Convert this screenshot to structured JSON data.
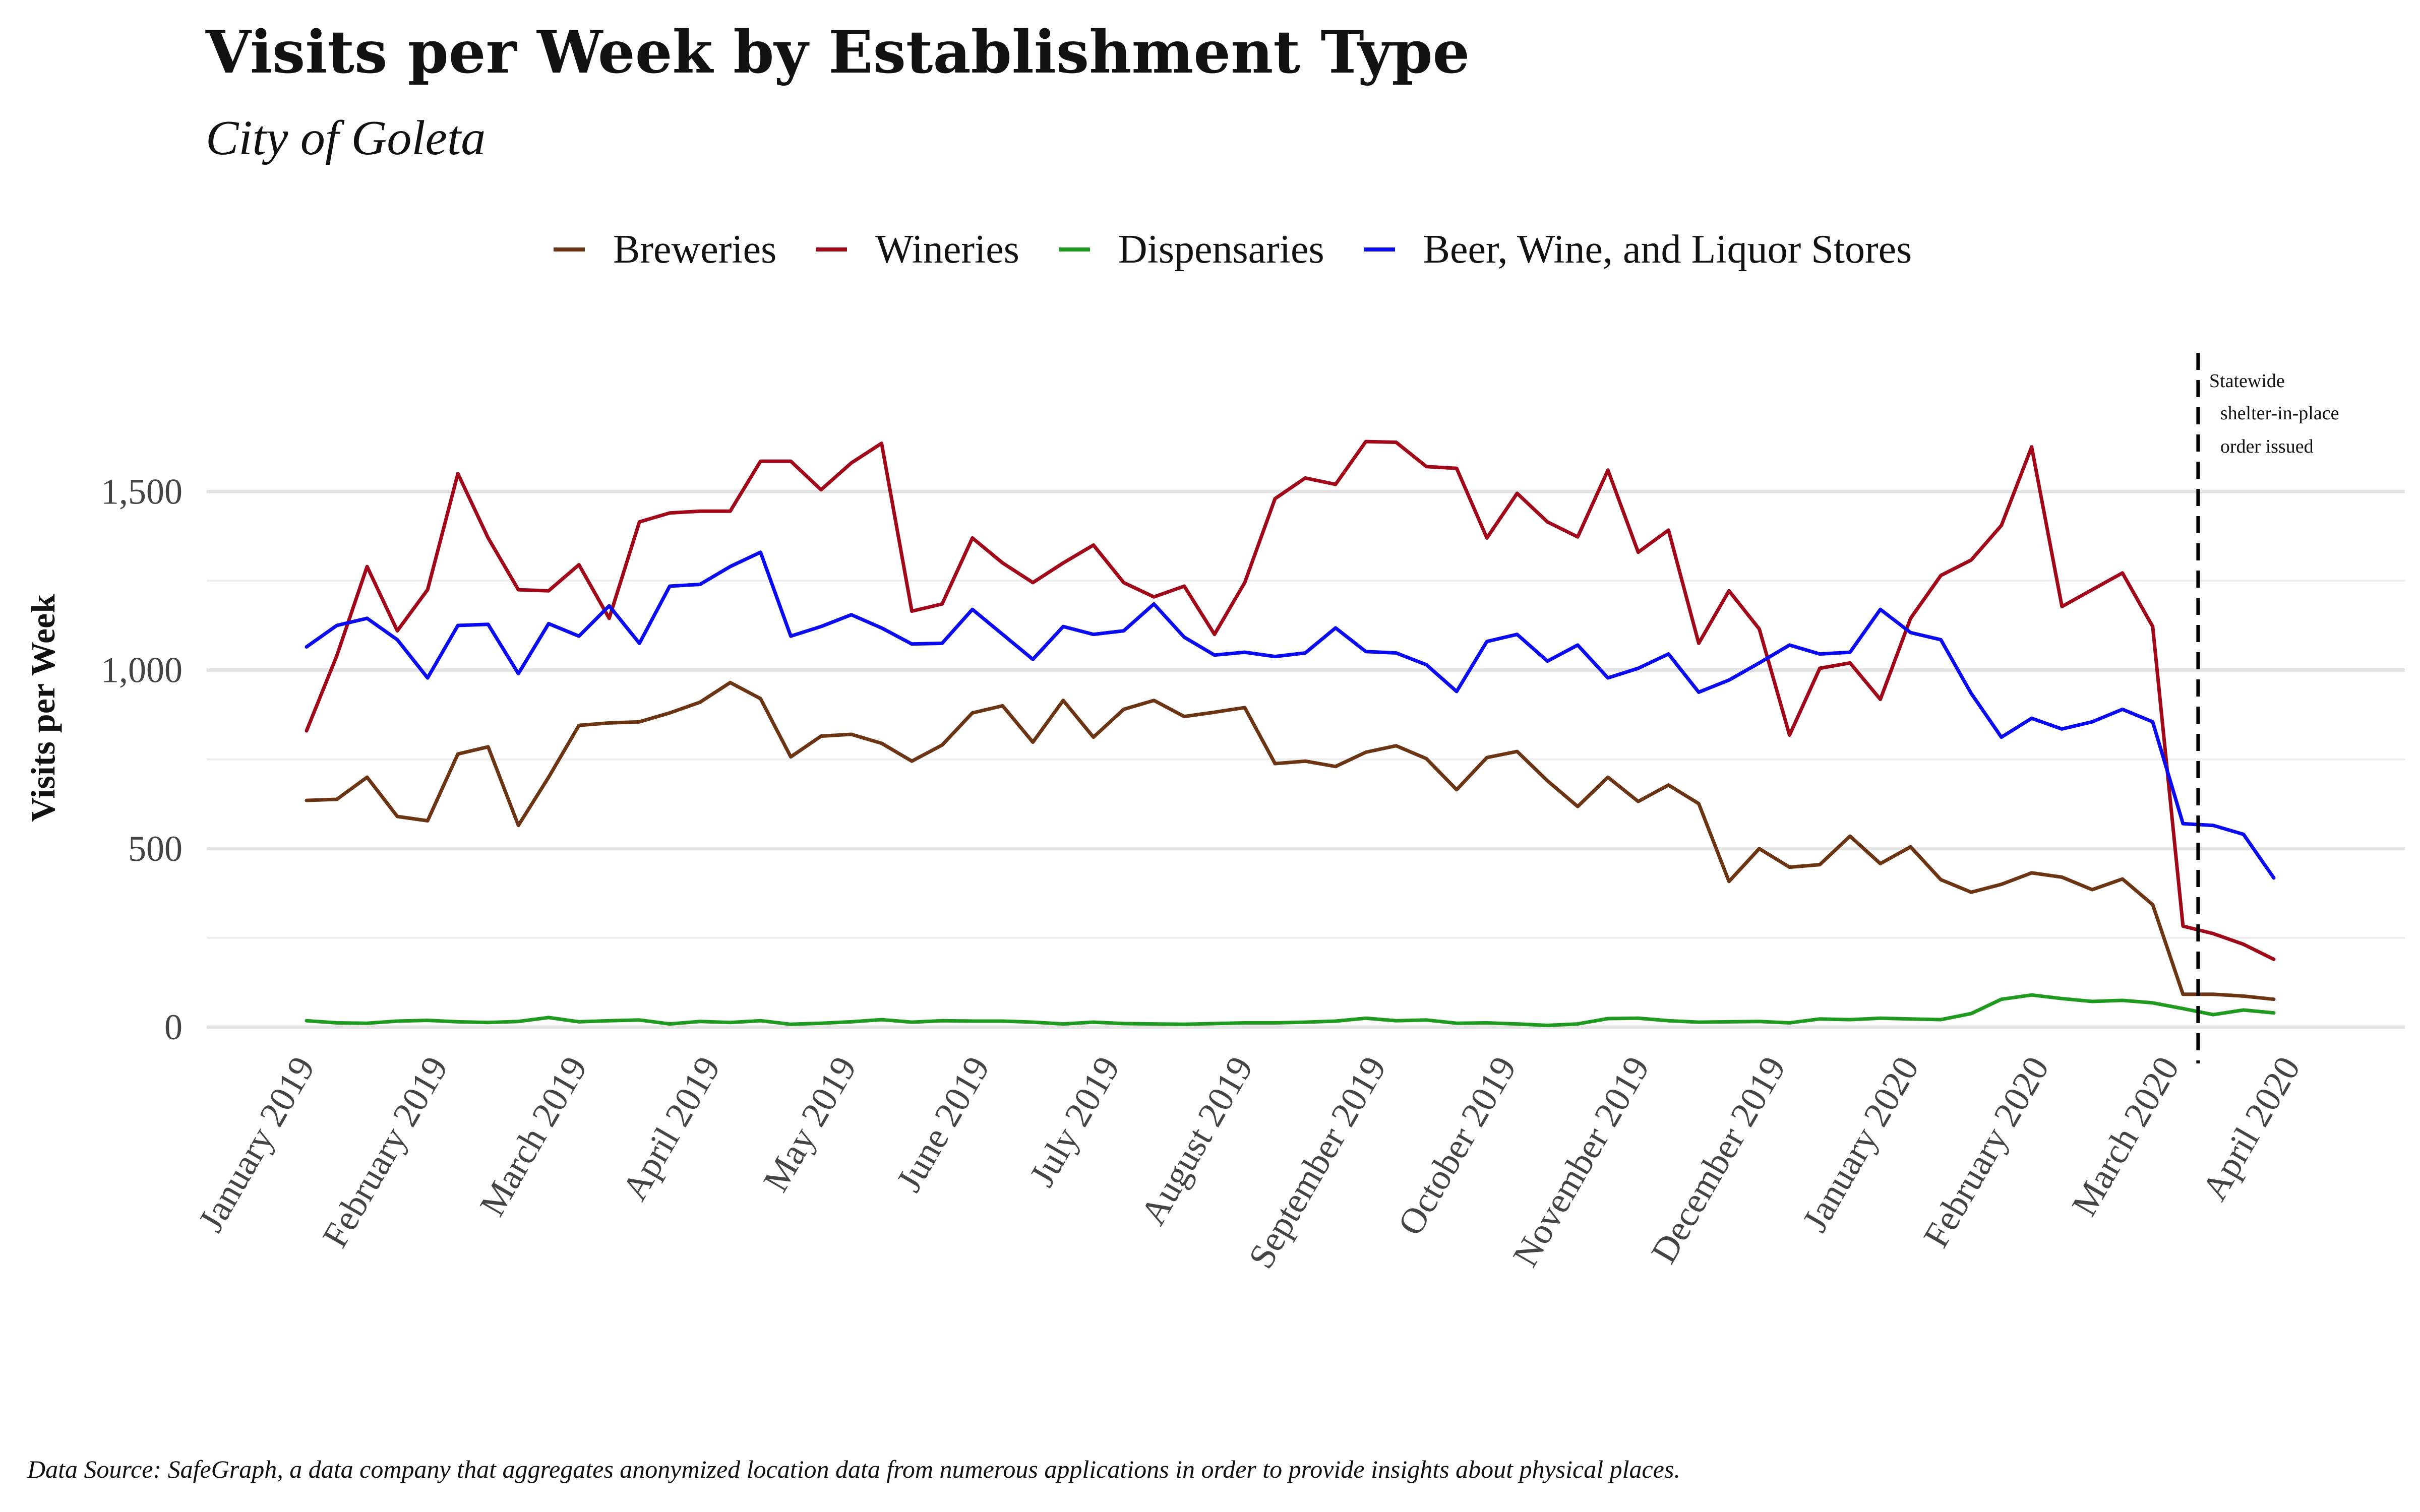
{
  "chart_data": {
    "type": "line",
    "title": "Visits per Week by Establishment Type",
    "subtitle": "City of Goleta",
    "xlabel": "",
    "ylabel": "Visits per Week",
    "caption": "Data Source: SafeGraph, a data company that aggregates anonymized location data from numerous applications in order to provide insights about physical places.",
    "legend_position": "top",
    "grid": true,
    "ylim": [
      0,
      1650
    ],
    "y_ticks": [
      0,
      500,
      1000,
      1500
    ],
    "y_tick_labels": [
      "0",
      "500",
      "1,000",
      "1,500"
    ],
    "x_range": [
      1,
      67
    ],
    "x_ticks": [
      1,
      5.4,
      10,
      14.4,
      18.9,
      23.3,
      27.6,
      32,
      36.4,
      40.7,
      45.1,
      49.6,
      54,
      58.3,
      62.6,
      66.6
    ],
    "x_tick_labels": [
      "January 2019",
      "February 2019",
      "March 2019",
      "April 2019",
      "May 2019",
      "June 2019",
      "July 2019",
      "August 2019",
      "September 2019",
      "October 2019",
      "November 2019",
      "December 2019",
      "January 2020",
      "February 2020",
      "March 2020",
      "April 2020"
    ],
    "annotation": {
      "x": 63.5,
      "lines": [
        "Statewide",
        "shelter-in-place",
        "order issued"
      ]
    },
    "series": [
      {
        "name": "Breweries",
        "color": "#6b3413",
        "values": [
          635,
          638,
          700,
          590,
          578,
          765,
          785,
          565,
          700,
          845,
          852,
          855,
          880,
          910,
          965,
          920,
          757,
          815,
          820,
          795,
          745,
          790,
          880,
          900,
          798,
          915,
          812,
          890,
          915,
          870,
          882,
          895,
          738,
          745,
          730,
          770,
          788,
          752,
          665,
          755,
          772,
          690,
          618,
          700,
          632,
          678,
          626,
          408,
          500,
          448,
          455,
          535,
          458,
          505,
          413,
          378,
          400,
          432,
          420,
          385,
          415,
          343,
          92,
          92,
          87,
          78
        ]
      },
      {
        "name": "Wineries",
        "color": "#a0081a",
        "values": [
          830,
          1040,
          1290,
          1110,
          1225,
          1550,
          1370,
          1225,
          1222,
          1295,
          1145,
          1415,
          1440,
          1445,
          1445,
          1585,
          1585,
          1505,
          1580,
          1635,
          1165,
          1185,
          1370,
          1300,
          1245,
          1300,
          1350,
          1245,
          1205,
          1235,
          1100,
          1245,
          1480,
          1538,
          1520,
          1640,
          1638,
          1570,
          1565,
          1370,
          1495,
          1415,
          1373,
          1560,
          1330,
          1392,
          1075,
          1222,
          1115,
          818,
          1005,
          1020,
          918,
          1145,
          1265,
          1308,
          1405,
          1625,
          1178,
          1225,
          1272,
          1122,
          283,
          262,
          232,
          190
        ]
      },
      {
        "name": "Dispensaries",
        "color": "#1e9b1e",
        "values": [
          18,
          12,
          11,
          17,
          19,
          15,
          13,
          16,
          27,
          15,
          18,
          20,
          9,
          16,
          13,
          18,
          8,
          11,
          15,
          21,
          14,
          18,
          17,
          17,
          14,
          9,
          14,
          10,
          9,
          8,
          10,
          12,
          12,
          14,
          17,
          25,
          18,
          20,
          11,
          12,
          9,
          5,
          9,
          24,
          25,
          18,
          14,
          15,
          16,
          12,
          23,
          21,
          25,
          23,
          21,
          38,
          78,
          90,
          80,
          72,
          75,
          68,
          52,
          35,
          48,
          40
        ]
      },
      {
        "name": "Beer, Wine, and Liquor Stores",
        "color": "#0a0af0",
        "values": [
          1065,
          1125,
          1145,
          1085,
          978,
          1125,
          1128,
          990,
          1130,
          1095,
          1180,
          1075,
          1235,
          1240,
          1290,
          1330,
          1095,
          1122,
          1155,
          1118,
          1073,
          1075,
          1170,
          1100,
          1030,
          1122,
          1100,
          1110,
          1185,
          1092,
          1042,
          1050,
          1038,
          1048,
          1118,
          1052,
          1048,
          1015,
          940,
          1080,
          1100,
          1025,
          1070,
          978,
          1005,
          1045,
          938,
          972,
          1020,
          1070,
          1045,
          1050,
          1170,
          1105,
          1085,
          935,
          812,
          865,
          835,
          855,
          890,
          855,
          570,
          565,
          540,
          418
        ]
      }
    ]
  }
}
